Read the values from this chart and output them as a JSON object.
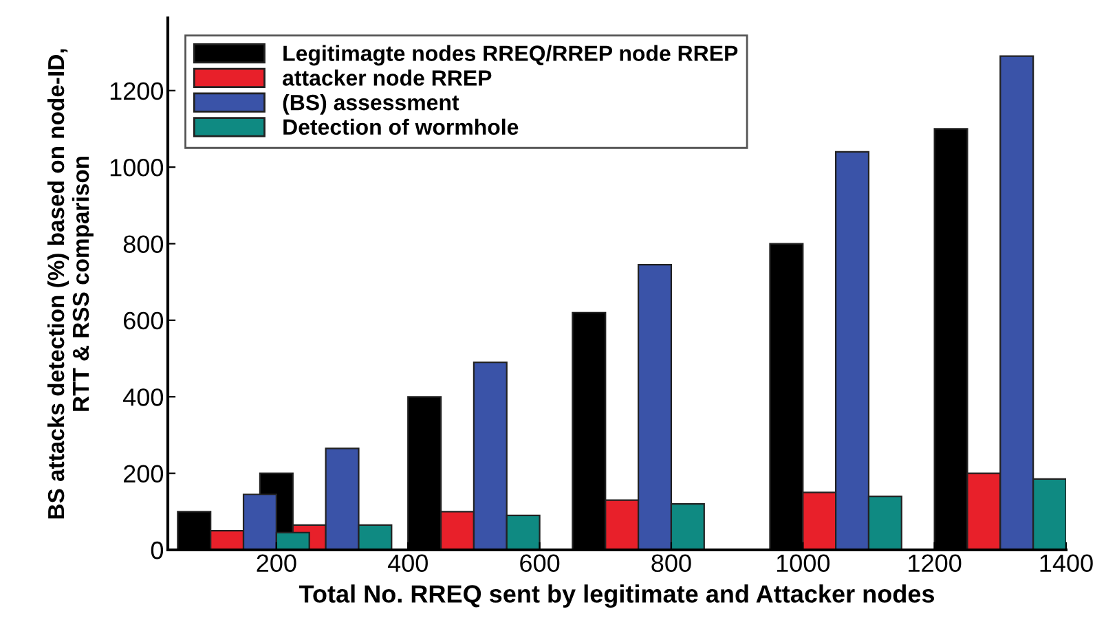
{
  "chart_data": {
    "type": "bar",
    "xlabel": "Total No. RREQ sent by legitimate and Attacker nodes",
    "ylabel": "BS attacks detection (%) based on node-ID,\nRTT & RSS comparison",
    "xlim": [
      35,
      1400
    ],
    "xticks": [
      200,
      400,
      600,
      800,
      1000,
      1200,
      1400
    ],
    "ylim": [
      0,
      1390
    ],
    "yticks": [
      0,
      200,
      400,
      600,
      800,
      1000,
      1200
    ],
    "grid": false,
    "legend": "top left",
    "series": [
      {
        "name": "Legitimagte nodes RREQ/RREP node RREP",
        "color": "#000000",
        "x": [
          75,
          200,
          425,
          675,
          975,
          1225
        ],
        "values": [
          100,
          200,
          400,
          620,
          800,
          1100
        ]
      },
      {
        "name": "attacker node RREP",
        "color": "#e8202a",
        "x": [
          125,
          250,
          475,
          725,
          1025,
          1275
        ],
        "values": [
          50,
          65,
          100,
          130,
          150,
          200
        ]
      },
      {
        "name": "(BS) assessment",
        "color": "#3a53a8",
        "x": [
          175,
          300,
          525,
          775,
          1075,
          1325
        ],
        "values": [
          145,
          265,
          490,
          745,
          1040,
          1290
        ]
      },
      {
        "name": "Detection of wormhole",
        "color": "#0f8a82",
        "x": [
          225,
          350,
          575,
          825,
          1125,
          1375
        ],
        "values": [
          45,
          65,
          90,
          120,
          140,
          185
        ]
      }
    ]
  }
}
